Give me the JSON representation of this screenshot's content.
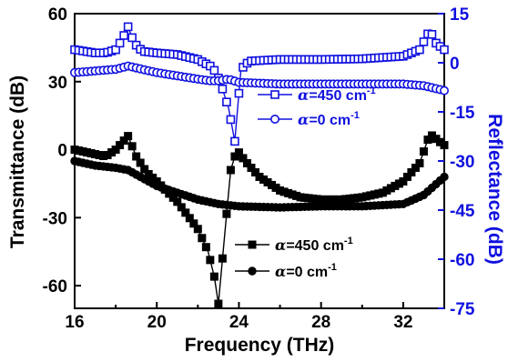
{
  "chart_data": {
    "type": "line",
    "title": "",
    "xlabel": "Frequency (THz)",
    "ylabel_left": "Transmittance (dB)",
    "ylabel_right": "Reflectance (dB)",
    "xlim": [
      16,
      34
    ],
    "ylim_left": [
      -70,
      60
    ],
    "ylim_right": [
      -75,
      15
    ],
    "x_ticks": [
      "16",
      "20",
      "24",
      "28",
      "32"
    ],
    "y_ticks_left": [
      "60",
      "30",
      "0",
      "-30",
      "-60"
    ],
    "y_ticks_right": [
      "15",
      "0",
      "-15",
      "-30",
      "-45",
      "-60",
      "-75"
    ],
    "colors": {
      "transmittance": "#000000",
      "reflectance": "#1010e0"
    },
    "grid": false,
    "legend_placement": {
      "reflectance": "upper-right",
      "transmittance": "lower-right"
    },
    "series": [
      {
        "name": "α=450 cm-1",
        "label": {
          "alpha": "α",
          "rest": "=450 cm",
          "sup": "-1"
        },
        "axis": "right",
        "marker": "open-square",
        "color": "#1010e0",
        "x": [
          16,
          16.5,
          17,
          17.5,
          18,
          18.3,
          18.6,
          18.9,
          19.3,
          20,
          21,
          22,
          22.6,
          22.9,
          23.2,
          23.5,
          23.8,
          24.1,
          24.5,
          26,
          28,
          30,
          32,
          32.8,
          33.3,
          33.6,
          34
        ],
        "values": [
          4,
          3.5,
          3,
          3,
          4,
          7,
          11,
          6,
          3.5,
          3,
          2.5,
          1,
          -1,
          -3,
          -8,
          -14,
          -24,
          -2,
          0.5,
          1,
          1,
          1.2,
          2,
          4,
          10,
          6,
          4
        ]
      },
      {
        "name": "α=0 cm-1",
        "label": {
          "alpha": "α",
          "rest": "=0 cm",
          "sup": "-1"
        },
        "axis": "right",
        "marker": "open-circle",
        "color": "#1010e0",
        "x": [
          16,
          17,
          18,
          18.6,
          19.3,
          20,
          21,
          22,
          22.6,
          23,
          23.5,
          24,
          26,
          28,
          30,
          32,
          33,
          34
        ],
        "values": [
          -3,
          -2.5,
          -2,
          -1,
          -2,
          -3,
          -4,
          -5,
          -5.5,
          -5.5,
          -5,
          -6,
          -6.5,
          -6.5,
          -6.5,
          -6.5,
          -7,
          -8.5
        ]
      },
      {
        "name": "α=450 cm-1",
        "label": {
          "alpha": "α",
          "rest": "=450 cm",
          "sup": "-1"
        },
        "axis": "left",
        "marker": "filled-square",
        "color": "#000000",
        "x": [
          16,
          17,
          17.5,
          18,
          18.3,
          18.6,
          19,
          19.5,
          20,
          21,
          22,
          22.5,
          22.8,
          23,
          23.3,
          23.6,
          23.9,
          24.3,
          25,
          26,
          27,
          28,
          29,
          30,
          31,
          32,
          32.8,
          33.3,
          33.7,
          34
        ],
        "values": [
          0,
          -2,
          -3,
          0,
          3,
          6,
          -3,
          -10,
          -14,
          -23,
          -35,
          -45,
          -56,
          -68,
          -38,
          -9,
          0,
          -5,
          -12,
          -18,
          -21,
          -22,
          -22,
          -21,
          -19,
          -14,
          -6,
          7,
          4,
          2
        ]
      },
      {
        "name": "α=0 cm-1",
        "label": {
          "alpha": "α",
          "rest": "=0 cm",
          "sup": "-1"
        },
        "axis": "left",
        "marker": "filled-circle",
        "color": "#000000",
        "x": [
          16,
          17,
          18,
          18.6,
          19,
          20,
          21,
          22,
          23,
          24,
          26,
          28,
          30,
          32,
          33,
          34
        ],
        "values": [
          -5,
          -7,
          -8,
          -9,
          -11,
          -16,
          -19,
          -22,
          -24,
          -25,
          -25.5,
          -25,
          -25,
          -24,
          -20,
          -12
        ]
      }
    ]
  }
}
